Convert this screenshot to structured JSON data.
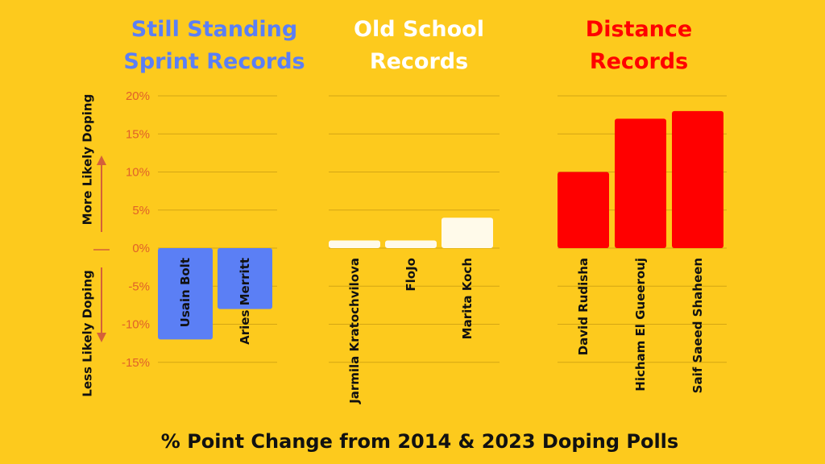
{
  "chart_data": {
    "type": "bar",
    "xlabel": "% Point Change from 2014 & 2023 Doping Polls",
    "ylabel_positive": "More Likely Doping",
    "ylabel_negative": "Less Likely Doping",
    "ylim": [
      -15,
      20
    ],
    "yticks": [
      20,
      15,
      10,
      5,
      0,
      -5,
      -10,
      -15
    ],
    "ytick_labels": [
      "20%",
      "15%",
      "10%",
      "5%",
      "0%",
      "-5%",
      "-10%",
      "-15%"
    ],
    "grid": true,
    "groups": [
      {
        "title": [
          "Still Standing",
          "Sprint Records"
        ],
        "color": "#5b7ff5",
        "title_color": "#5b7ff5",
        "categories": [
          "Usain Bolt",
          "Aries Merritt"
        ],
        "values": [
          -12,
          -8
        ]
      },
      {
        "title": [
          "Old School",
          "Records"
        ],
        "color": "#fffaea",
        "title_color": "#ffffff",
        "categories": [
          "Jarmila Kratochvilova",
          "FloJo",
          "Marita Koch"
        ],
        "values": [
          1,
          1,
          4
        ]
      },
      {
        "title": [
          "Distance",
          "Records"
        ],
        "color": "#ff0000",
        "title_color": "#ff0000",
        "categories": [
          "David Rudisha",
          "Hicham El Gueerouj",
          "Saif Saeed Shaheen"
        ],
        "values": [
          10,
          17,
          18
        ]
      }
    ]
  },
  "colors": {
    "background": "#fdca1d",
    "gridline": "#d4a514",
    "tick": "#e0602a",
    "arrow": "#d4603a",
    "text": "#111111"
  }
}
